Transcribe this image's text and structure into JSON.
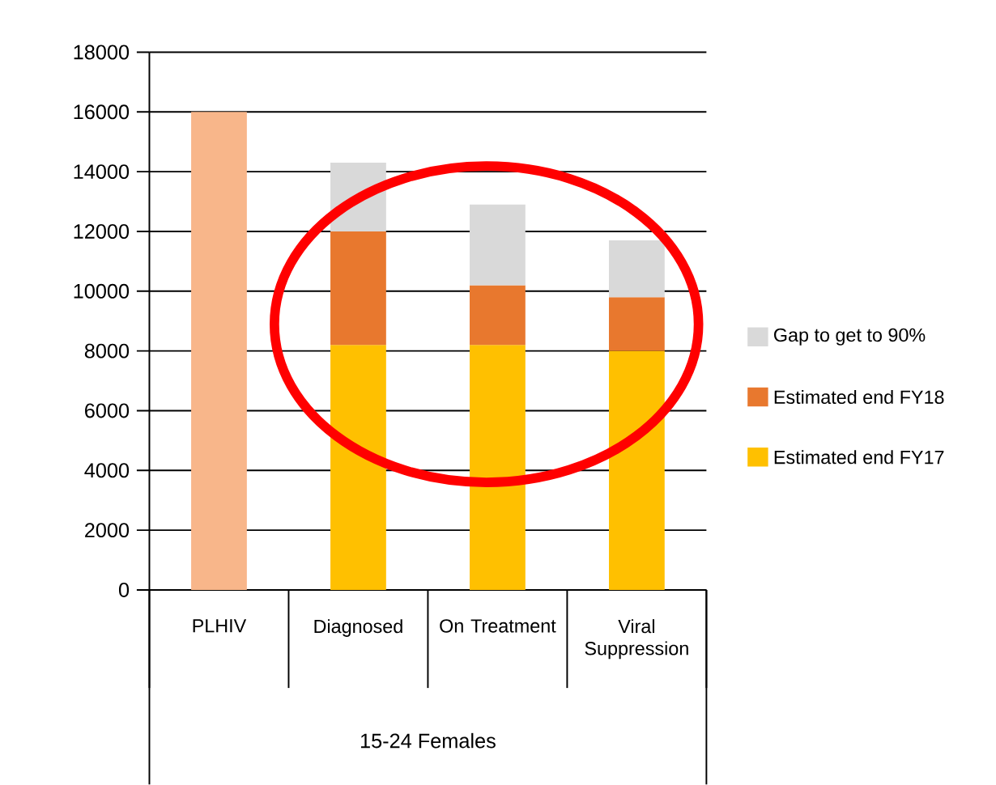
{
  "chart_data": {
    "type": "bar",
    "stacked": true,
    "xlabel": "15-24 Females",
    "categories": [
      "PLHIV",
      "Diagnosed",
      "On Treatment",
      "Viral Suppression"
    ],
    "series": [
      {
        "color": "#f8b68a",
        "values": [
          16000,
          null,
          null,
          null
        ]
      },
      {
        "name": "Estimated end FY17",
        "color": "#ffc000",
        "values": [
          null,
          8200,
          8200,
          8000
        ]
      },
      {
        "name": "Estimated end FY18",
        "color": "#e8782e",
        "values": [
          null,
          3800,
          2000,
          1800
        ]
      },
      {
        "name": "Gap to get to 90%",
        "color": "#d9d9d9",
        "values": [
          null,
          2300,
          2700,
          1900
        ]
      }
    ],
    "ylim": [
      0,
      18000
    ],
    "yticks": [
      0,
      2000,
      4000,
      6000,
      8000,
      10000,
      12000,
      14000,
      16000,
      18000
    ],
    "grid": "y",
    "legend": "right"
  }
}
